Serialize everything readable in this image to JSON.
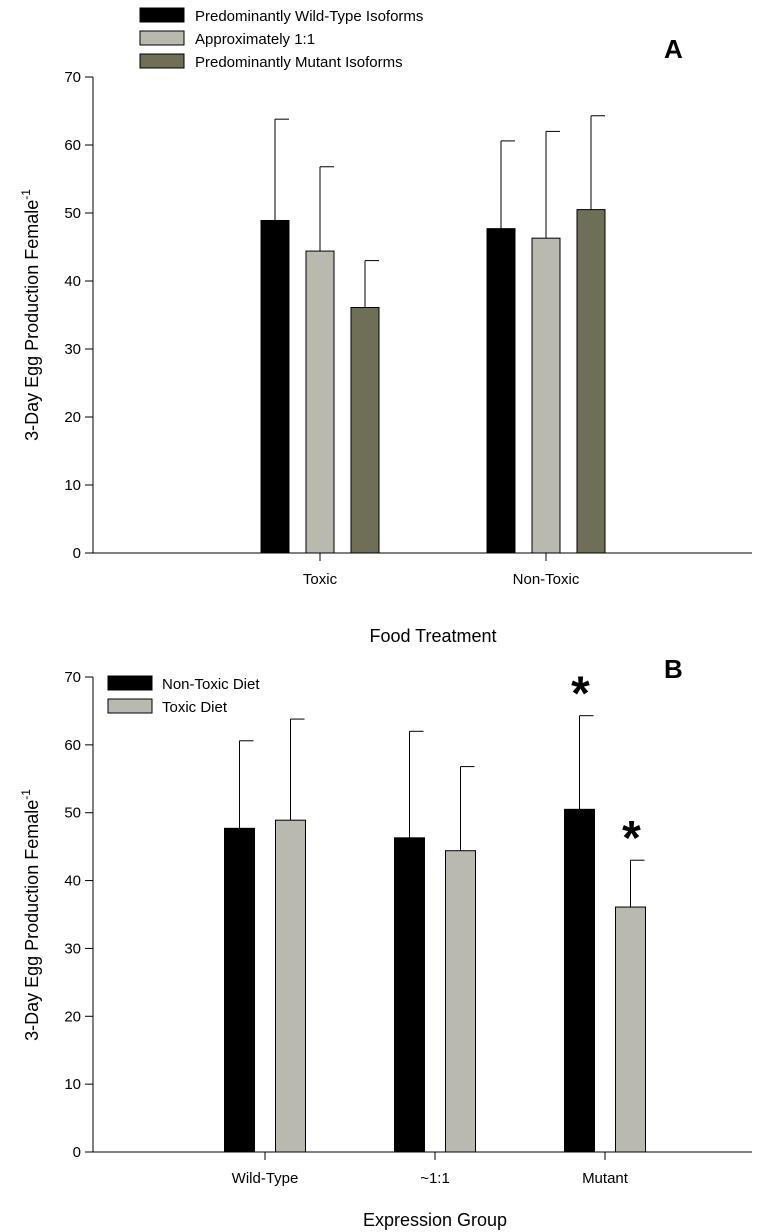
{
  "chart_data": [
    {
      "type": "bar",
      "panel_label": "A",
      "categories": [
        "Toxic",
        "Non-Toxic"
      ],
      "series": [
        {
          "name": "Predominantly Wild-Type Isoforms",
          "values": [
            48.9,
            47.7
          ],
          "errors": [
            14.9,
            12.9
          ],
          "color": "#000000"
        },
        {
          "name": "Approximately 1:1",
          "values": [
            44.4,
            46.3
          ],
          "errors": [
            12.4,
            15.7
          ],
          "color": "#b9b9af"
        },
        {
          "name": "Predominantly Mutant Isoforms",
          "values": [
            36.1,
            50.5
          ],
          "errors": [
            6.9,
            13.8
          ],
          "color": "#6f6e57"
        }
      ],
      "xlabel": "Food Treatment",
      "ylabel": "3-Day Egg Production Female",
      "ylabel_superscript": "-1",
      "ylim": [
        0,
        70
      ],
      "yticks": [
        0,
        10,
        20,
        30,
        40,
        50,
        60,
        70
      ],
      "legend_position": "top-left",
      "grid": false
    },
    {
      "type": "bar",
      "panel_label": "B",
      "categories": [
        "Wild-Type",
        "~1:1",
        "Mutant"
      ],
      "series": [
        {
          "name": "Non-Toxic Diet",
          "values": [
            47.7,
            46.3,
            50.5
          ],
          "errors": [
            12.9,
            15.7,
            13.8
          ],
          "color": "#000000",
          "significance": [
            "",
            "",
            "*"
          ]
        },
        {
          "name": "Toxic Diet",
          "values": [
            48.9,
            44.4,
            36.1
          ],
          "errors": [
            14.9,
            12.4,
            6.9
          ],
          "color": "#b9b9af",
          "significance": [
            "",
            "",
            "*"
          ]
        }
      ],
      "xlabel": "Expression Group",
      "ylabel": "3-Day Egg Production Female",
      "ylabel_superscript": "-1",
      "ylim": [
        0,
        70
      ],
      "yticks": [
        0,
        10,
        20,
        30,
        40,
        50,
        60,
        70
      ],
      "legend_position": "top-left",
      "grid": false
    }
  ]
}
